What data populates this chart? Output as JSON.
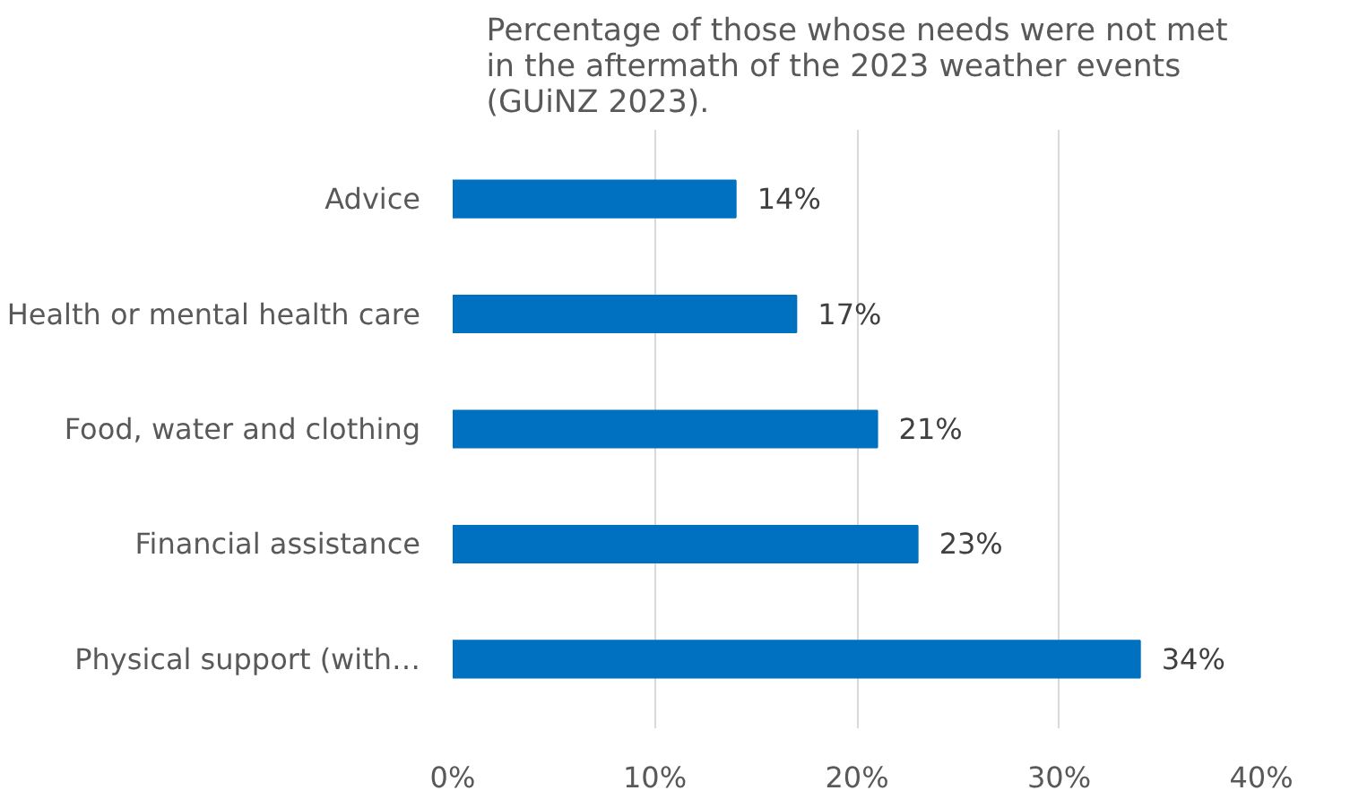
{
  "chart_data": {
    "type": "bar",
    "orientation": "horizontal",
    "title": "Percentage of those whose needs were not met in the aftermath of the 2023 weather events (GUiNZ 2023).",
    "categories": [
      "Advice",
      "Health or mental health care",
      "Food, water and clothing",
      "Financial assistance",
      "Physical support (with…"
    ],
    "values": [
      14,
      17,
      21,
      23,
      34
    ],
    "value_labels": [
      "14%",
      "17%",
      "21%",
      "23%",
      "34%"
    ],
    "color": "#0070c0",
    "xlim": [
      0,
      40
    ],
    "xticks": [
      {
        "value": 0,
        "label": "0%"
      },
      {
        "value": 10,
        "label": "10%"
      },
      {
        "value": 20,
        "label": "20%"
      },
      {
        "value": 30,
        "label": "30%"
      },
      {
        "value": 40,
        "label": "40%"
      }
    ],
    "grid": "x"
  }
}
